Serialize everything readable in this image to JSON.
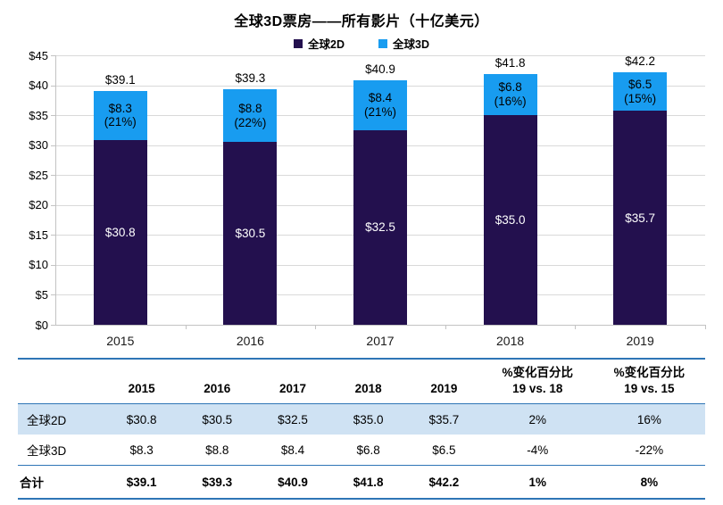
{
  "chart_data": {
    "type": "bar",
    "stacked": true,
    "title": "全球3D票房——所有影片（十亿美元）",
    "categories": [
      "2015",
      "2016",
      "2017",
      "2018",
      "2019"
    ],
    "series": [
      {
        "name": "全球2D",
        "color": "#23104e",
        "values": [
          30.8,
          30.5,
          32.5,
          35.0,
          35.7
        ],
        "value_labels": [
          "$30.8",
          "$30.5",
          "$32.5",
          "$35.0",
          "$35.7"
        ]
      },
      {
        "name": "全球3D",
        "color": "#189cf0",
        "values": [
          8.3,
          8.8,
          8.4,
          6.8,
          6.5
        ],
        "value_labels": [
          "$8.3",
          "$8.8",
          "$8.4",
          "$6.8",
          "$6.5"
        ],
        "pct_labels": [
          "(21%)",
          "(22%)",
          "(21%)",
          "(16%)",
          "(15%)"
        ]
      }
    ],
    "totals": [
      39.1,
      39.3,
      40.9,
      41.8,
      42.2
    ],
    "total_labels": [
      "$39.1",
      "$39.3",
      "$40.9",
      "$41.8",
      "$42.2"
    ],
    "xlabel": "",
    "ylabel": "",
    "ylim": [
      0,
      45
    ],
    "ytick_step": 5,
    "ytick_labels": [
      "$0",
      "$5",
      "$10",
      "$15",
      "$20",
      "$25",
      "$30",
      "$35",
      "$40",
      "$45"
    ],
    "grid": true,
    "legend_position": "top-center"
  },
  "table": {
    "headers": [
      "",
      "2015",
      "2016",
      "2017",
      "2018",
      "2019",
      "%变化百分比\n19 vs. 18",
      "%变化百分比\n19 vs. 15"
    ],
    "rows": [
      {
        "label": "全球2D",
        "values": [
          "$30.8",
          "$30.5",
          "$32.5",
          "$35.0",
          "$35.7",
          "2%",
          "16%"
        ],
        "highlight": true,
        "bold": false
      },
      {
        "label": "全球3D",
        "values": [
          "$8.3",
          "$8.8",
          "$8.4",
          "$6.8",
          "$6.5",
          "-4%",
          "-22%"
        ],
        "highlight": false,
        "bold": false
      },
      {
        "label": "合计",
        "values": [
          "$39.1",
          "$39.3",
          "$40.9",
          "$41.8",
          "$42.2",
          "1%",
          "8%"
        ],
        "highlight": false,
        "bold": true
      }
    ],
    "highlight_color": "#cfe2f3",
    "border_color": "#2e75b6"
  }
}
